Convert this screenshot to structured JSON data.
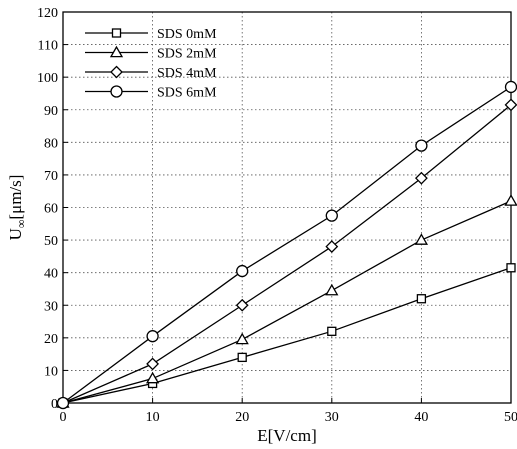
{
  "chart_data": {
    "type": "line",
    "title": "",
    "xlabel": "E[V/cm]",
    "ylabel_main": "U",
    "ylabel_sub": "∞",
    "ylabel_tail": "[μm/s]",
    "xlim": [
      0,
      50
    ],
    "ylim": [
      0,
      120
    ],
    "xticks": [
      0,
      10,
      20,
      30,
      40,
      50
    ],
    "yticks": [
      0,
      10,
      20,
      30,
      40,
      50,
      60,
      70,
      80,
      90,
      100,
      110,
      120
    ],
    "grid": true,
    "legend_position": "top-left",
    "x": [
      0,
      10,
      20,
      30,
      40,
      50
    ],
    "series": [
      {
        "name": "SDS 0mM",
        "marker": "square",
        "values": [
          0,
          6,
          14,
          22,
          32,
          41.5
        ]
      },
      {
        "name": "SDS 2mM",
        "marker": "triangle",
        "values": [
          0,
          7.5,
          19.5,
          34.5,
          50,
          62
        ]
      },
      {
        "name": "SDS 4mM",
        "marker": "diamond",
        "values": [
          0,
          12,
          30,
          48,
          69,
          91.5
        ]
      },
      {
        "name": "SDS 6mM",
        "marker": "circle",
        "values": [
          0,
          20.5,
          40.5,
          57.5,
          79,
          97
        ]
      }
    ],
    "colors": {
      "line": "#000000",
      "grid": "#555555"
    }
  }
}
